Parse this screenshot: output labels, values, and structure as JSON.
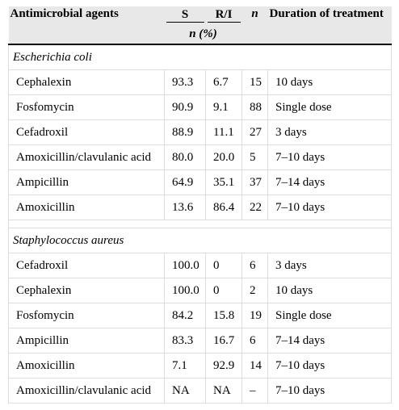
{
  "header": {
    "agents": "Antimicrobial agents",
    "s": "S",
    "ri": "R/I",
    "n": "n",
    "duration": "Duration of treatment",
    "npct": "n (%)"
  },
  "groups": [
    {
      "name": "Escherichia coli",
      "rows": [
        {
          "agent": "Cephalexin",
          "s": "93.3",
          "ri": "6.7",
          "n": "15",
          "duration": "10 days"
        },
        {
          "agent": "Fosfomycin",
          "s": "90.9",
          "ri": "9.1",
          "n": "88",
          "duration": "Single dose"
        },
        {
          "agent": "Cefadroxil",
          "s": "88.9",
          "ri": "11.1",
          "n": "27",
          "duration": "3 days"
        },
        {
          "agent": "Amoxicillin/clavulanic acid",
          "s": "80.0",
          "ri": "20.0",
          "n": "5",
          "duration": "7–10 days"
        },
        {
          "agent": "Ampicillin",
          "s": "64.9",
          "ri": "35.1",
          "n": "37",
          "duration": "7–14 days"
        },
        {
          "agent": "Amoxicillin",
          "s": "13.6",
          "ri": "86.4",
          "n": "22",
          "duration": "7–10 days"
        }
      ]
    },
    {
      "name": "Staphylococcus aureus",
      "rows": [
        {
          "agent": "Cefadroxil",
          "s": "100.0",
          "ri": "0",
          "n": "6",
          "duration": "3 days"
        },
        {
          "agent": "Cephalexin",
          "s": "100.0",
          "ri": "0",
          "n": "2",
          "duration": "10 days"
        },
        {
          "agent": "Fosfomycin",
          "s": "84.2",
          "ri": "15.8",
          "n": "19",
          "duration": "Single dose"
        },
        {
          "agent": "Ampicillin",
          "s": "83.3",
          "ri": "16.7",
          "n": "6",
          "duration": "7–14 days"
        },
        {
          "agent": "Amoxicillin",
          "s": "7.1",
          "ri": "92.9",
          "n": "14",
          "duration": "7–10 days"
        },
        {
          "agent": "Amoxicillin/clavulanic acid",
          "s": "NA",
          "ri": "NA",
          "n": "–",
          "duration": "7–10 days"
        }
      ]
    }
  ]
}
